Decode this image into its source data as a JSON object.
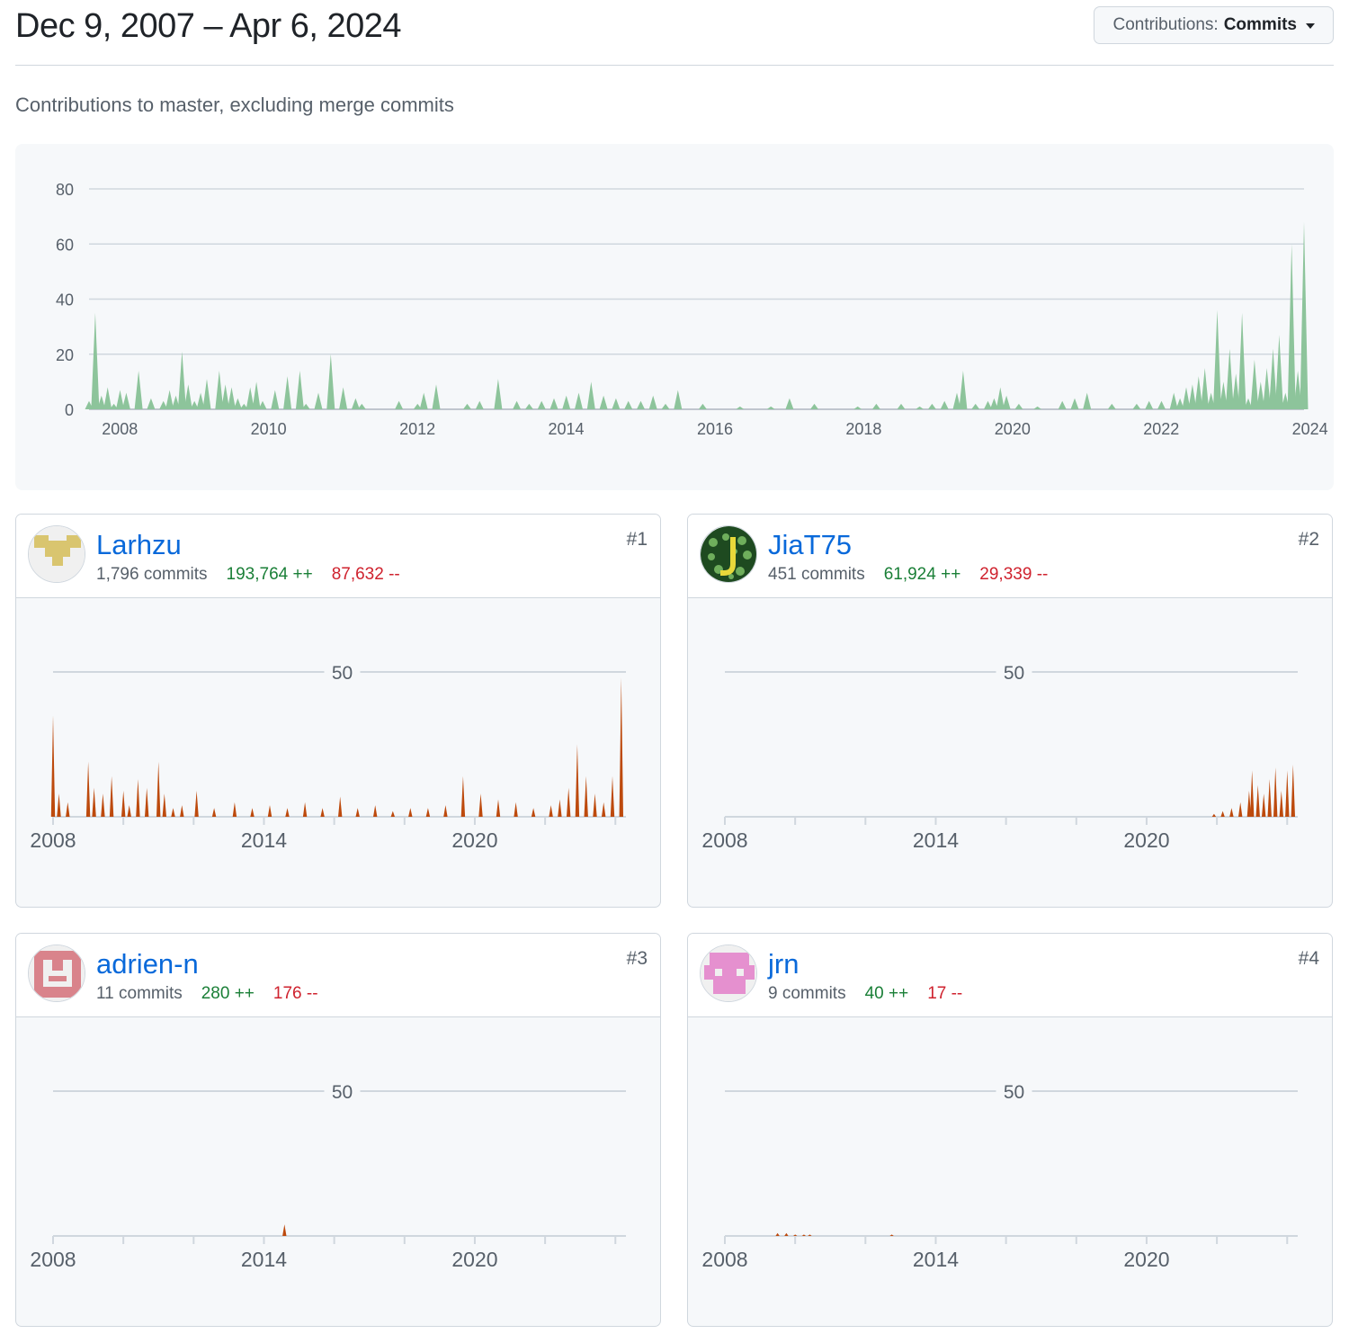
{
  "header": {
    "title": "Dec 9, 2007 – Apr 6, 2024",
    "dropdown": {
      "prefix": "Contributions:",
      "value": "Commits"
    }
  },
  "subtitle": "Contributions to master, excluding merge commits",
  "colors": {
    "overall": "#8dc49b",
    "contributor": "#bd4a0d",
    "link": "#0969da",
    "additions": "#1a7f37",
    "deletions": "#cf222e"
  },
  "chart_data": [
    {
      "type": "area",
      "title": "",
      "xlabel": "",
      "ylabel": "",
      "x_ticks": [
        "2008",
        "2010",
        "2012",
        "2014",
        "2016",
        "2018",
        "2020",
        "2022",
        "2024"
      ],
      "y_ticks": [
        0,
        20,
        40,
        60,
        80
      ],
      "xlim": [
        "2007-12",
        "2024-04"
      ],
      "ylim": [
        0,
        80
      ],
      "grid": true,
      "series": [
        {
          "x": [
            "2007-12",
            "2008-01",
            "2008-02",
            "2008-03",
            "2008-04",
            "2008-05",
            "2008-06",
            "2008-08",
            "2008-10",
            "2008-12",
            "2009-01",
            "2009-02",
            "2009-03",
            "2009-04",
            "2009-05",
            "2009-06",
            "2009-07",
            "2009-09",
            "2009-10",
            "2009-11",
            "2009-12",
            "2010-01",
            "2010-02",
            "2010-03",
            "2010-04",
            "2010-06",
            "2010-08",
            "2010-10",
            "2010-11",
            "2011-01",
            "2011-03",
            "2011-05",
            "2011-07",
            "2011-08",
            "2012-02",
            "2012-05",
            "2012-06",
            "2012-08",
            "2013-01",
            "2013-03",
            "2013-06",
            "2013-09",
            "2013-11",
            "2014-01",
            "2014-03",
            "2014-05",
            "2014-07",
            "2014-09",
            "2014-11",
            "2015-01",
            "2015-03",
            "2015-05",
            "2015-07",
            "2015-09",
            "2015-11",
            "2016-03",
            "2016-09",
            "2017-02",
            "2017-05",
            "2017-09",
            "2018-04",
            "2018-07",
            "2018-11",
            "2019-02",
            "2019-04",
            "2019-06",
            "2019-08",
            "2019-09",
            "2019-11",
            "2020-01",
            "2020-02",
            "2020-03",
            "2020-04",
            "2020-06",
            "2020-09",
            "2021-01",
            "2021-03",
            "2021-05",
            "2021-09",
            "2022-01",
            "2022-03",
            "2022-05",
            "2022-07",
            "2022-08",
            "2022-09",
            "2022-10",
            "2022-11",
            "2022-12",
            "2023-01",
            "2023-02",
            "2023-03",
            "2023-04",
            "2023-05",
            "2023-06",
            "2023-07",
            "2023-08",
            "2023-09",
            "2023-10",
            "2023-11",
            "2023-12",
            "2024-01",
            "2024-02",
            "2024-03",
            "2024-04"
          ],
          "values": [
            3,
            35,
            5,
            8,
            2,
            7,
            6,
            14,
            4,
            3,
            7,
            5,
            21,
            9,
            3,
            6,
            11,
            14,
            9,
            8,
            4,
            2,
            8,
            10,
            3,
            7,
            12,
            14,
            2,
            6,
            20,
            8,
            4,
            2,
            3,
            2,
            6,
            9,
            2,
            3,
            11,
            3,
            2,
            3,
            4,
            5,
            6,
            10,
            5,
            4,
            3,
            3,
            5,
            2,
            7,
            2,
            1,
            1,
            4,
            2,
            1,
            2,
            2,
            1,
            2,
            3,
            6,
            14,
            2,
            3,
            4,
            8,
            5,
            2,
            1,
            3,
            4,
            6,
            2,
            2,
            3,
            3,
            6,
            4,
            8,
            9,
            12,
            15,
            6,
            36,
            10,
            22,
            13,
            35,
            4,
            18,
            10,
            15,
            22,
            27,
            6,
            60,
            14,
            68
          ]
        }
      ]
    },
    {
      "type": "area",
      "title": "",
      "x_ticks": [
        "2008",
        "2014",
        "2020"
      ],
      "y_ticks": [
        50
      ],
      "ylim": [
        0,
        50
      ],
      "series": [
        {
          "x": [
            "2008-01",
            "2008-03",
            "2008-06",
            "2009-01",
            "2009-03",
            "2009-06",
            "2009-09",
            "2010-01",
            "2010-03",
            "2010-06",
            "2010-09",
            "2011-01",
            "2011-03",
            "2011-06",
            "2011-09",
            "2012-02",
            "2012-08",
            "2013-03",
            "2013-09",
            "2014-03",
            "2014-09",
            "2015-03",
            "2015-09",
            "2016-03",
            "2016-09",
            "2017-03",
            "2017-09",
            "2018-03",
            "2018-09",
            "2019-03",
            "2019-09",
            "2020-03",
            "2020-09",
            "2021-03",
            "2021-09",
            "2022-03",
            "2022-06",
            "2022-09",
            "2022-12",
            "2023-03",
            "2023-06",
            "2023-09",
            "2023-12",
            "2024-03"
          ],
          "values": [
            35,
            8,
            5,
            19,
            10,
            8,
            14,
            9,
            4,
            13,
            10,
            19,
            8,
            3,
            4,
            9,
            3,
            5,
            3,
            4,
            3,
            5,
            3,
            7,
            3,
            4,
            2,
            3,
            3,
            4,
            14,
            8,
            6,
            5,
            3,
            4,
            6,
            10,
            25,
            14,
            8,
            5,
            14,
            48
          ]
        }
      ]
    },
    {
      "type": "area",
      "title": "",
      "x_ticks": [
        "2008",
        "2014",
        "2020"
      ],
      "y_ticks": [
        50
      ],
      "ylim": [
        0,
        50
      ],
      "series": [
        {
          "x": [
            "2021-12",
            "2022-03",
            "2022-06",
            "2022-09",
            "2022-12",
            "2023-01",
            "2023-03",
            "2023-05",
            "2023-07",
            "2023-09",
            "2023-11",
            "2024-01",
            "2024-03"
          ],
          "values": [
            1,
            2,
            3,
            5,
            9,
            16,
            11,
            8,
            13,
            17,
            9,
            16,
            18
          ]
        }
      ]
    },
    {
      "type": "area",
      "title": "",
      "x_ticks": [
        "2008",
        "2014",
        "2020"
      ],
      "y_ticks": [
        50
      ],
      "ylim": [
        0,
        50
      ],
      "series": [
        {
          "x": [
            "2014-08"
          ],
          "values": [
            4
          ]
        }
      ]
    },
    {
      "type": "area",
      "title": "",
      "x_ticks": [
        "2008",
        "2014",
        "2020"
      ],
      "y_ticks": [
        50
      ],
      "ylim": [
        0,
        50
      ],
      "series": [
        {
          "x": [
            "2009-07",
            "2009-10",
            "2010-01",
            "2010-04",
            "2010-06",
            "2012-10"
          ],
          "values": [
            1,
            1,
            0.5,
            0.5,
            0.5,
            0.5
          ]
        }
      ]
    }
  ],
  "contributors": [
    {
      "login": "Larhzu",
      "commits": "1,796 commits",
      "additions": "193,764 ++",
      "deletions": "87,632 --",
      "rank": "#1",
      "avatar": "identicon-gold"
    },
    {
      "login": "JiaT75",
      "commits": "451 commits",
      "additions": "61,924 ++",
      "deletions": "29,339 --",
      "rank": "#2",
      "avatar": "green-pattern-j"
    },
    {
      "login": "adrien-n",
      "commits": "11 commits",
      "additions": "280 ++",
      "deletions": "176 --",
      "rank": "#3",
      "avatar": "identicon-red"
    },
    {
      "login": "jrn",
      "commits": "9 commits",
      "additions": "40 ++",
      "deletions": "17 --",
      "rank": "#4",
      "avatar": "identicon-pink"
    }
  ]
}
